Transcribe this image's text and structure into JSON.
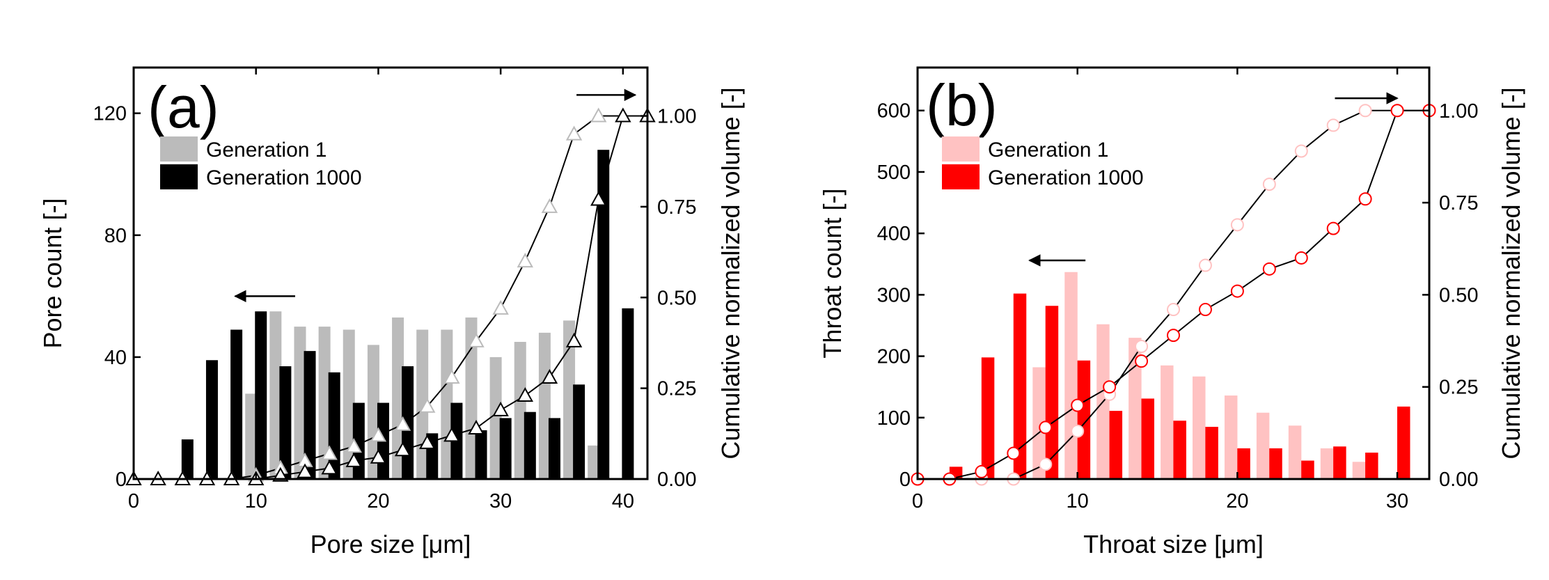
{
  "chart_data": [
    {
      "type": "bar",
      "panel_label": "(a)",
      "xlabel": "Pore size [μm]",
      "ylabel": "Pore count [-]",
      "y2label": "Cumulative normalized volume [-]",
      "xlim": [
        0,
        42
      ],
      "ylim": [
        0,
        135
      ],
      "y2lim": [
        0,
        1.1333
      ],
      "xticks": [
        0,
        10,
        20,
        30,
        40
      ],
      "yticks": [
        0,
        40,
        80,
        120
      ],
      "y2ticks": [
        0,
        0.25,
        0.5,
        0.75,
        1.0
      ],
      "xtick_labels": [
        "0",
        "10",
        "20",
        "30",
        "40"
      ],
      "ytick_labels": [
        "0",
        "40",
        "80",
        "120"
      ],
      "y2tick_labels": [
        "0.00",
        "0.25",
        "0.50",
        "0.75",
        "1.00"
      ],
      "legend_position": "upper-left",
      "legend": [
        "Generation 1",
        "Generation 1000"
      ],
      "arrows": [
        {
          "direction": "left",
          "points_to": "left-axis",
          "x_from": 13.2,
          "x_to": 8.3,
          "y": 60
        },
        {
          "direction": "right",
          "points_to": "right-axis",
          "x_from": 36.2,
          "x_to": 41.0,
          "y": 126
        }
      ],
      "bars": [
        {
          "name": "Generation 1",
          "color": "#bbbbbb",
          "x": [
            9.6,
            11.6,
            13.6,
            15.6,
            17.6,
            19.6,
            21.6,
            23.6,
            25.6,
            27.6,
            29.6,
            31.6,
            33.6,
            35.6,
            37.6
          ],
          "values": [
            28,
            55,
            50,
            50,
            49,
            44,
            53,
            49,
            49,
            53,
            40,
            45,
            48,
            52,
            11
          ]
        },
        {
          "name": "Generation 1000",
          "color": "#000000",
          "x": [
            4.4,
            6.4,
            8.4,
            10.4,
            12.4,
            14.4,
            16.4,
            18.4,
            20.4,
            22.4,
            24.4,
            26.4,
            28.4,
            30.4,
            32.4,
            34.4,
            36.4,
            38.4,
            40.4
          ],
          "values": [
            13,
            39,
            49,
            55,
            37,
            42,
            35,
            25,
            25,
            37,
            15,
            25,
            16,
            20,
            22,
            20,
            31,
            108,
            56
          ]
        }
      ],
      "lines": [
        {
          "series": "Generation 1",
          "marker": "triangle",
          "color": "#bbbbbb",
          "x": [
            0,
            2,
            4,
            6,
            8,
            10,
            12,
            14,
            16,
            18,
            20,
            22,
            24,
            26,
            28,
            30,
            32,
            34,
            36,
            38,
            40,
            42
          ],
          "values": [
            0,
            0,
            0,
            0,
            0,
            0.01,
            0.03,
            0.05,
            0.07,
            0.09,
            0.12,
            0.15,
            0.2,
            0.28,
            0.38,
            0.47,
            0.6,
            0.75,
            0.95,
            1.0,
            1.0,
            1.0
          ]
        },
        {
          "series": "Generation 1000",
          "marker": "triangle",
          "color": "#000000",
          "x": [
            0,
            2,
            4,
            6,
            8,
            10,
            12,
            14,
            16,
            18,
            20,
            22,
            24,
            26,
            28,
            30,
            32,
            34,
            36,
            38,
            40,
            42
          ],
          "values": [
            0,
            0,
            0,
            0,
            0,
            0,
            0.01,
            0.02,
            0.03,
            0.05,
            0.06,
            0.08,
            0.1,
            0.12,
            0.14,
            0.19,
            0.23,
            0.28,
            0.38,
            0.77,
            1.0,
            1.0
          ]
        }
      ]
    },
    {
      "type": "bar",
      "panel_label": "(b)",
      "xlabel": "Throat size [μm]",
      "ylabel": "Throat count [-]",
      "y2label": "Cumulative normalized volume [-]",
      "xlim": [
        0,
        32
      ],
      "ylim": [
        0,
        670
      ],
      "y2lim": [
        0,
        1.1167
      ],
      "xticks": [
        0,
        10,
        20,
        30
      ],
      "yticks": [
        0,
        100,
        200,
        300,
        400,
        500,
        600
      ],
      "y2ticks": [
        0,
        0.25,
        0.5,
        0.75,
        1.0
      ],
      "xtick_labels": [
        "0",
        "10",
        "20",
        "30"
      ],
      "ytick_labels": [
        "0",
        "100",
        "200",
        "300",
        "400",
        "500",
        "600"
      ],
      "y2tick_labels": [
        "0.00",
        "0.25",
        "0.50",
        "0.75",
        "1.00"
      ],
      "legend_position": "upper-left",
      "legend": [
        "Generation 1",
        "Generation 1000"
      ],
      "arrows": [
        {
          "direction": "left",
          "points_to": "left-axis",
          "x_from": 10.5,
          "x_to": 7.0,
          "y": 356
        },
        {
          "direction": "right",
          "points_to": "right-axis",
          "x_from": 26.1,
          "x_to": 30.0,
          "y": 620
        }
      ],
      "bars": [
        {
          "name": "Generation 1",
          "color": "#ffc2c2",
          "x": [
            7.6,
            9.6,
            11.6,
            13.6,
            15.6,
            17.6,
            19.6,
            21.6,
            23.6,
            25.6,
            27.6
          ],
          "values": [
            182,
            337,
            252,
            230,
            185,
            167,
            136,
            108,
            87,
            50,
            28
          ]
        },
        {
          "name": "Generation 1000",
          "color": "#ff0000",
          "x": [
            2.4,
            4.4,
            6.4,
            8.4,
            10.4,
            12.4,
            14.4,
            16.4,
            18.4,
            20.4,
            22.4,
            24.4,
            26.4,
            28.4,
            30.4
          ],
          "values": [
            20,
            198,
            302,
            282,
            193,
            111,
            131,
            95,
            85,
            50,
            50,
            30,
            53,
            43,
            118
          ]
        }
      ],
      "lines": [
        {
          "series": "Generation 1",
          "marker": "circle",
          "color": "#ffc2c2",
          "x": [
            0,
            2,
            4,
            6,
            8,
            10,
            12,
            14,
            16,
            18,
            20,
            22,
            24,
            26,
            28,
            30,
            32
          ],
          "values": [
            0,
            0,
            0,
            0,
            0.04,
            0.13,
            0.23,
            0.36,
            0.46,
            0.58,
            0.69,
            0.8,
            0.89,
            0.96,
            1.0,
            1.0,
            1.0
          ]
        },
        {
          "series": "Generation 1000",
          "marker": "circle",
          "color": "#ff0000",
          "x": [
            0,
            2,
            4,
            6,
            8,
            10,
            12,
            14,
            16,
            18,
            20,
            22,
            24,
            26,
            28,
            30,
            32
          ],
          "values": [
            0,
            0,
            0.02,
            0.07,
            0.14,
            0.2,
            0.25,
            0.32,
            0.39,
            0.46,
            0.51,
            0.57,
            0.6,
            0.68,
            0.76,
            1.0,
            1.0
          ]
        }
      ]
    }
  ]
}
